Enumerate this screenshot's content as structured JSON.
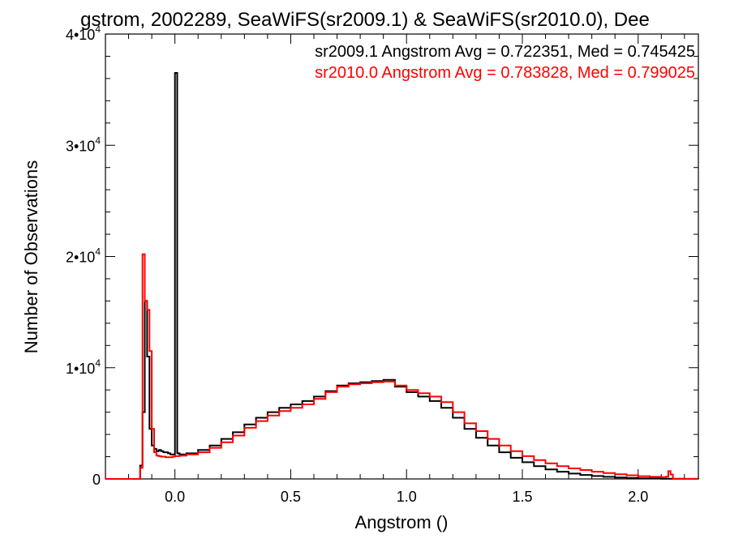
{
  "chart_data": {
    "type": "line",
    "title": "gstrom, 2002289, SeaWiFS(sr2009.1) & SeaWiFS(sr2010.0), Dee",
    "xlabel": "Angstrom ()",
    "ylabel": "Number of Observations",
    "xlim": [
      -0.3,
      2.26
    ],
    "ylim": [
      0,
      40000
    ],
    "x_ticks": [
      {
        "value": 0.0,
        "label": "0.0"
      },
      {
        "value": 0.5,
        "label": "0.5"
      },
      {
        "value": 1.0,
        "label": "1.0"
      },
      {
        "value": 1.5,
        "label": "1.5"
      },
      {
        "value": 2.0,
        "label": "2.0"
      }
    ],
    "y_ticks": [
      {
        "value": 0,
        "mantissa": "0",
        "exp": ""
      },
      {
        "value": 10000,
        "mantissa": "1•10",
        "exp": "4"
      },
      {
        "value": 20000,
        "mantissa": "2•10",
        "exp": "4"
      },
      {
        "value": 30000,
        "mantissa": "3•10",
        "exp": "4"
      },
      {
        "value": 40000,
        "mantissa": "4•10",
        "exp": "4"
      }
    ],
    "grid": false,
    "legend_position": "top-right",
    "series": [
      {
        "name": "sr2009.1",
        "legend_text": "sr2009.1 Angstrom Avg = 0.722351, Med = 0.745425",
        "color": "#000000",
        "step": true,
        "points": [
          [
            -0.3,
            0
          ],
          [
            -0.16,
            0
          ],
          [
            -0.15,
            1200
          ],
          [
            -0.14,
            6000
          ],
          [
            -0.13,
            16000
          ],
          [
            -0.12,
            11000
          ],
          [
            -0.11,
            4500
          ],
          [
            -0.1,
            3000
          ],
          [
            -0.09,
            2700
          ],
          [
            -0.08,
            2500
          ],
          [
            -0.07,
            2600
          ],
          [
            -0.06,
            2500
          ],
          [
            -0.05,
            2400
          ],
          [
            -0.04,
            2400
          ],
          [
            -0.03,
            2300
          ],
          [
            -0.02,
            2200
          ],
          [
            -0.01,
            2200
          ],
          [
            0.0,
            36500
          ],
          [
            0.01,
            2300
          ],
          [
            0.02,
            2200
          ],
          [
            0.05,
            2300
          ],
          [
            0.1,
            2600
          ],
          [
            0.15,
            3000
          ],
          [
            0.2,
            3600
          ],
          [
            0.25,
            4200
          ],
          [
            0.3,
            4900
          ],
          [
            0.35,
            5500
          ],
          [
            0.4,
            6000
          ],
          [
            0.45,
            6400
          ],
          [
            0.5,
            6700
          ],
          [
            0.55,
            7000
          ],
          [
            0.6,
            7400
          ],
          [
            0.65,
            7900
          ],
          [
            0.7,
            8400
          ],
          [
            0.75,
            8600
          ],
          [
            0.8,
            8700
          ],
          [
            0.85,
            8800
          ],
          [
            0.9,
            8900
          ],
          [
            0.95,
            8300
          ],
          [
            1.0,
            7800
          ],
          [
            1.05,
            7400
          ],
          [
            1.1,
            7000
          ],
          [
            1.15,
            6400
          ],
          [
            1.2,
            5500
          ],
          [
            1.25,
            4500
          ],
          [
            1.3,
            3700
          ],
          [
            1.35,
            3000
          ],
          [
            1.4,
            2400
          ],
          [
            1.45,
            1900
          ],
          [
            1.5,
            1500
          ],
          [
            1.55,
            1150
          ],
          [
            1.6,
            850
          ],
          [
            1.65,
            650
          ],
          [
            1.7,
            480
          ],
          [
            1.75,
            360
          ],
          [
            1.8,
            260
          ],
          [
            1.85,
            190
          ],
          [
            1.9,
            130
          ],
          [
            1.95,
            90
          ],
          [
            2.0,
            60
          ],
          [
            2.05,
            40
          ],
          [
            2.1,
            25
          ],
          [
            2.15,
            15
          ],
          [
            2.2,
            5
          ],
          [
            2.26,
            0
          ]
        ]
      },
      {
        "name": "sr2010.0",
        "legend_text": "sr2010.0 Angstrom Avg = 0.783828, Med = 0.799025",
        "color": "#ff0000",
        "step": true,
        "points": [
          [
            -0.3,
            0
          ],
          [
            -0.16,
            0
          ],
          [
            -0.15,
            1000
          ],
          [
            -0.14,
            20200
          ],
          [
            -0.13,
            16000
          ],
          [
            -0.12,
            15200
          ],
          [
            -0.11,
            11500
          ],
          [
            -0.1,
            4500
          ],
          [
            -0.09,
            2400
          ],
          [
            -0.08,
            2100
          ],
          [
            -0.07,
            2050
          ],
          [
            -0.06,
            2000
          ],
          [
            -0.05,
            2000
          ],
          [
            -0.04,
            1950
          ],
          [
            -0.03,
            1950
          ],
          [
            -0.02,
            1950
          ],
          [
            -0.01,
            2000
          ],
          [
            0.0,
            2050
          ],
          [
            0.02,
            2100
          ],
          [
            0.05,
            2200
          ],
          [
            0.1,
            2400
          ],
          [
            0.15,
            2800
          ],
          [
            0.2,
            3300
          ],
          [
            0.25,
            3900
          ],
          [
            0.3,
            4600
          ],
          [
            0.35,
            5200
          ],
          [
            0.4,
            5700
          ],
          [
            0.45,
            6100
          ],
          [
            0.5,
            6400
          ],
          [
            0.55,
            6700
          ],
          [
            0.6,
            7200
          ],
          [
            0.65,
            7800
          ],
          [
            0.7,
            8300
          ],
          [
            0.75,
            8500
          ],
          [
            0.8,
            8600
          ],
          [
            0.85,
            8700
          ],
          [
            0.9,
            8750
          ],
          [
            0.95,
            8400
          ],
          [
            1.0,
            8000
          ],
          [
            1.05,
            7700
          ],
          [
            1.1,
            7400
          ],
          [
            1.15,
            6900
          ],
          [
            1.2,
            6000
          ],
          [
            1.25,
            5000
          ],
          [
            1.3,
            4300
          ],
          [
            1.35,
            3600
          ],
          [
            1.4,
            3000
          ],
          [
            1.45,
            2500
          ],
          [
            1.5,
            2050
          ],
          [
            1.55,
            1700
          ],
          [
            1.6,
            1400
          ],
          [
            1.65,
            1150
          ],
          [
            1.7,
            950
          ],
          [
            1.75,
            800
          ],
          [
            1.8,
            650
          ],
          [
            1.85,
            530
          ],
          [
            1.9,
            420
          ],
          [
            1.95,
            330
          ],
          [
            2.0,
            250
          ],
          [
            2.05,
            190
          ],
          [
            2.1,
            150
          ],
          [
            2.12,
            200
          ],
          [
            2.13,
            700
          ],
          [
            2.14,
            400
          ],
          [
            2.15,
            0
          ],
          [
            2.26,
            0
          ]
        ]
      }
    ]
  }
}
